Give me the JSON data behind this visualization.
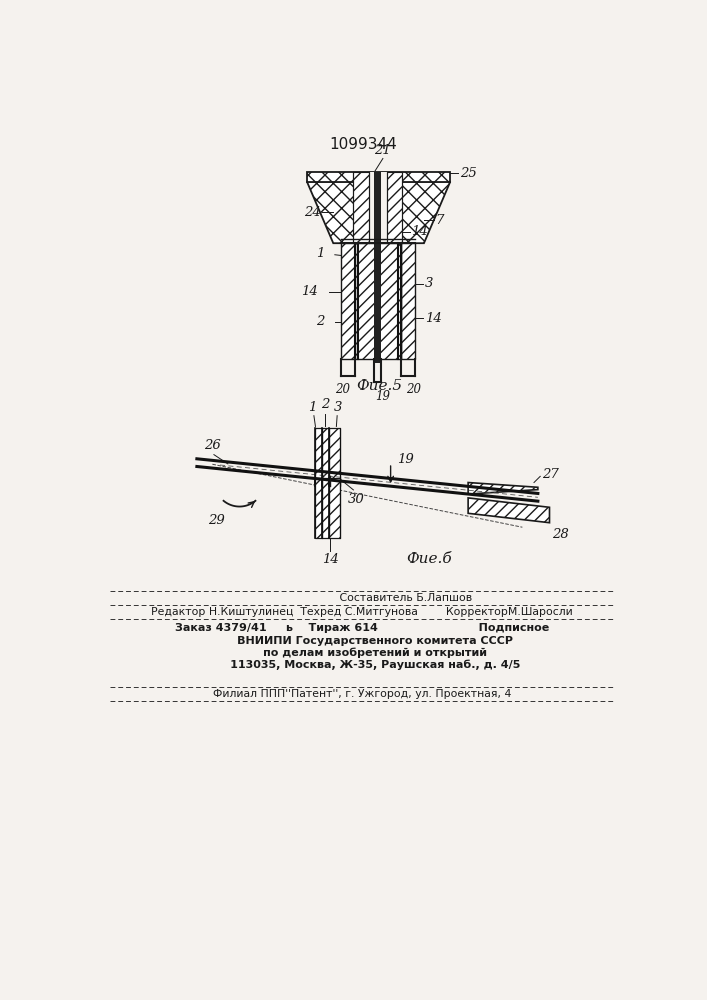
{
  "patent_number": "1099344",
  "fig5_caption": "Фие.5",
  "fig6_caption": "Фие.б",
  "bg_color": "#f5f2ee",
  "line_color": "#1a1a1a",
  "footer_line1": "                         Составитель Б.Лапшов",
  "footer_line2": "Редактор Н.Киштулинец  Техред С.Митгунова        КорректорМ.Шаросли",
  "footer_line3": "Заказ 4379/41     ь    Тираж 614                          Подписное",
  "footer_line4": "       ВНИИПИ Государственного комитета СССР",
  "footer_line5": "       по делам изобретений и открытий",
  "footer_line6": "       113035, Москва, Ж-35, Раушская наб., д. 4/5",
  "footer_line7": "Филиал ППП''Патент'', г. Ужгород, ул. Проектная, 4"
}
